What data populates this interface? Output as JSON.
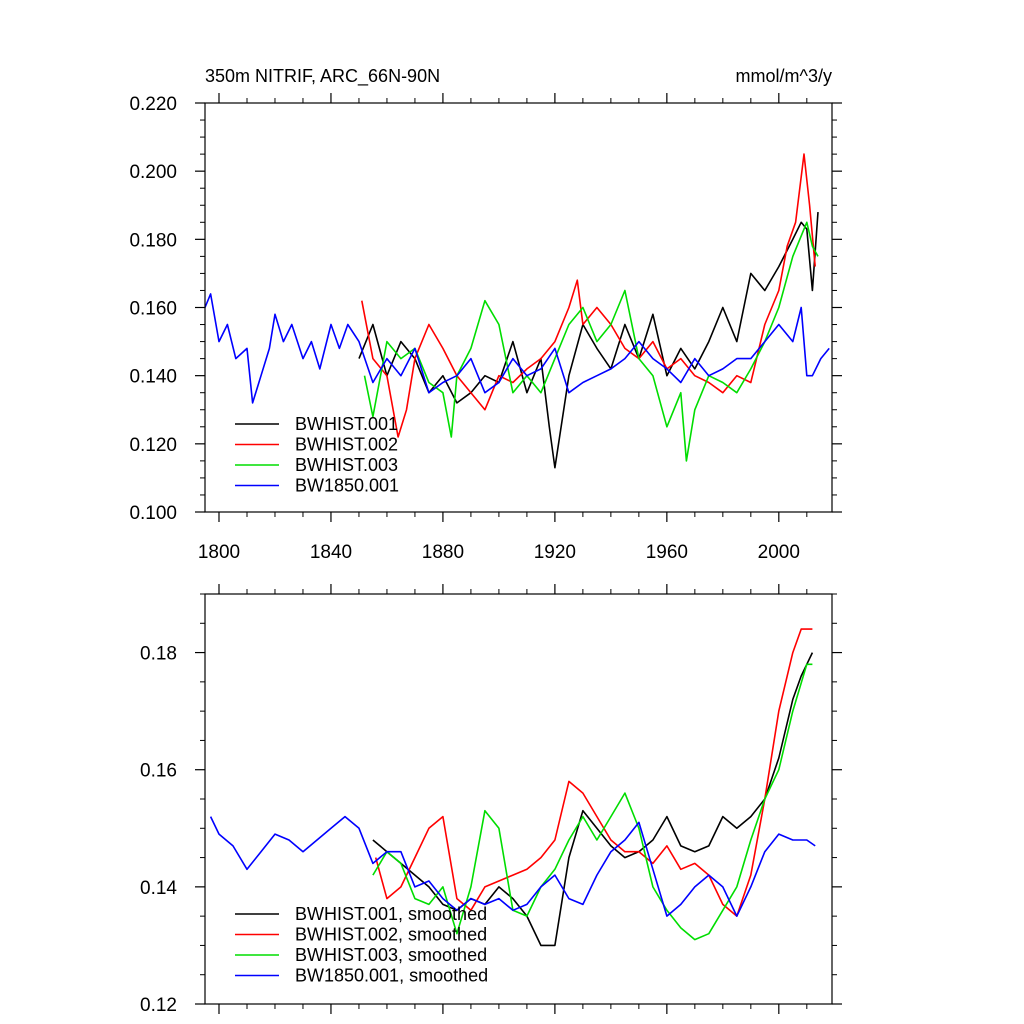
{
  "chart_data": [
    {
      "type": "line",
      "title_left": "350m NITRIF, ARC_66N-90N",
      "title_right": "mmol/m^3/y",
      "xlabel": "",
      "ylabel": "",
      "xlim": [
        1795,
        2019
      ],
      "ylim": [
        0.1,
        0.22
      ],
      "xticks": [
        1800,
        1840,
        1880,
        1920,
        1960,
        2000
      ],
      "xtick_labels": [
        "1800",
        "1840",
        "1880",
        "1920",
        "1960",
        "2000"
      ],
      "yticks": [
        0.1,
        0.12,
        0.14,
        0.16,
        0.18,
        0.2,
        0.22
      ],
      "ytick_labels": [
        "0.100",
        "0.120",
        "0.140",
        "0.160",
        "0.180",
        "0.200",
        "0.220"
      ],
      "legend_position": "bottom-left",
      "series": [
        {
          "name": "BWHIST.001",
          "color": "#000000",
          "x": [
            1850,
            1855,
            1860,
            1865,
            1870,
            1875,
            1880,
            1885,
            1890,
            1895,
            1900,
            1905,
            1910,
            1915,
            1918,
            1920,
            1925,
            1930,
            1935,
            1940,
            1945,
            1950,
            1955,
            1960,
            1965,
            1970,
            1975,
            1980,
            1985,
            1990,
            1995,
            2000,
            2005,
            2008,
            2010,
            2012,
            2014
          ],
          "y": [
            0.145,
            0.155,
            0.14,
            0.15,
            0.145,
            0.135,
            0.14,
            0.132,
            0.135,
            0.14,
            0.138,
            0.15,
            0.135,
            0.145,
            0.125,
            0.113,
            0.14,
            0.155,
            0.148,
            0.142,
            0.155,
            0.145,
            0.158,
            0.14,
            0.148,
            0.142,
            0.15,
            0.16,
            0.15,
            0.17,
            0.165,
            0.172,
            0.18,
            0.185,
            0.183,
            0.165,
            0.188
          ]
        },
        {
          "name": "BWHIST.002",
          "color": "#ff0000",
          "x": [
            1851,
            1855,
            1860,
            1864,
            1867,
            1870,
            1875,
            1880,
            1885,
            1890,
            1895,
            1900,
            1905,
            1910,
            1915,
            1920,
            1925,
            1928,
            1930,
            1935,
            1940,
            1945,
            1950,
            1955,
            1960,
            1965,
            1970,
            1975,
            1980,
            1985,
            1990,
            1995,
            2000,
            2003,
            2006,
            2009,
            2011,
            2013
          ],
          "y": [
            0.162,
            0.145,
            0.14,
            0.122,
            0.13,
            0.145,
            0.155,
            0.148,
            0.14,
            0.135,
            0.13,
            0.14,
            0.138,
            0.142,
            0.145,
            0.15,
            0.16,
            0.168,
            0.155,
            0.16,
            0.155,
            0.148,
            0.145,
            0.15,
            0.142,
            0.145,
            0.14,
            0.138,
            0.135,
            0.14,
            0.138,
            0.155,
            0.165,
            0.178,
            0.185,
            0.205,
            0.19,
            0.172
          ]
        },
        {
          "name": "BWHIST.003",
          "color": "#00dd00",
          "x": [
            1852,
            1855,
            1860,
            1865,
            1870,
            1875,
            1880,
            1883,
            1885,
            1890,
            1895,
            1900,
            1905,
            1910,
            1915,
            1920,
            1925,
            1930,
            1935,
            1940,
            1945,
            1950,
            1955,
            1960,
            1965,
            1967,
            1970,
            1975,
            1980,
            1985,
            1990,
            1995,
            2000,
            2005,
            2010,
            2012,
            2014
          ],
          "y": [
            0.14,
            0.128,
            0.15,
            0.145,
            0.148,
            0.138,
            0.135,
            0.122,
            0.14,
            0.148,
            0.162,
            0.155,
            0.135,
            0.14,
            0.135,
            0.145,
            0.155,
            0.16,
            0.15,
            0.155,
            0.165,
            0.145,
            0.14,
            0.125,
            0.135,
            0.115,
            0.13,
            0.14,
            0.138,
            0.135,
            0.142,
            0.15,
            0.16,
            0.175,
            0.185,
            0.178,
            0.175
          ]
        },
        {
          "name": "BW1850.001",
          "color": "#0000ff",
          "x": [
            1795,
            1797,
            1800,
            1803,
            1806,
            1810,
            1812,
            1815,
            1818,
            1820,
            1823,
            1826,
            1830,
            1833,
            1836,
            1840,
            1843,
            1846,
            1850,
            1855,
            1860,
            1865,
            1870,
            1875,
            1880,
            1885,
            1890,
            1895,
            1900,
            1905,
            1910,
            1915,
            1920,
            1925,
            1930,
            1935,
            1940,
            1945,
            1950,
            1955,
            1960,
            1965,
            1970,
            1975,
            1980,
            1985,
            1990,
            1995,
            2000,
            2005,
            2008,
            2010,
            2012,
            2015,
            2018
          ],
          "y": [
            0.16,
            0.164,
            0.15,
            0.155,
            0.145,
            0.148,
            0.132,
            0.14,
            0.148,
            0.158,
            0.15,
            0.155,
            0.145,
            0.15,
            0.142,
            0.155,
            0.148,
            0.155,
            0.15,
            0.138,
            0.145,
            0.14,
            0.148,
            0.135,
            0.138,
            0.14,
            0.145,
            0.135,
            0.138,
            0.145,
            0.14,
            0.142,
            0.148,
            0.135,
            0.138,
            0.14,
            0.142,
            0.145,
            0.15,
            0.145,
            0.142,
            0.138,
            0.145,
            0.14,
            0.142,
            0.145,
            0.145,
            0.15,
            0.155,
            0.15,
            0.16,
            0.14,
            0.14,
            0.145,
            0.148
          ]
        }
      ]
    },
    {
      "type": "line",
      "xlabel": "",
      "ylabel": "",
      "xlim": [
        1795,
        2019
      ],
      "ylim": [
        0.12,
        0.19
      ],
      "xticks": [
        1800,
        1840,
        1880,
        1920,
        1960,
        2000
      ],
      "xtick_labels": [],
      "yticks": [
        0.12,
        0.14,
        0.16,
        0.18
      ],
      "ytick_labels": [
        "0.12",
        "0.14",
        "0.16",
        "0.18"
      ],
      "legend_position": "bottom-left",
      "series": [
        {
          "name": "BWHIST.001, smoothed",
          "color": "#000000",
          "x": [
            1855,
            1860,
            1865,
            1870,
            1875,
            1880,
            1885,
            1890,
            1895,
            1900,
            1905,
            1910,
            1915,
            1920,
            1925,
            1930,
            1935,
            1940,
            1945,
            1950,
            1955,
            1960,
            1965,
            1970,
            1975,
            1980,
            1985,
            1990,
            1995,
            2000,
            2005,
            2008,
            2010,
            2012
          ],
          "y": [
            0.148,
            0.146,
            0.144,
            0.142,
            0.14,
            0.137,
            0.136,
            0.138,
            0.137,
            0.14,
            0.138,
            0.135,
            0.13,
            0.13,
            0.145,
            0.153,
            0.15,
            0.147,
            0.145,
            0.146,
            0.148,
            0.152,
            0.147,
            0.146,
            0.147,
            0.152,
            0.15,
            0.152,
            0.155,
            0.162,
            0.172,
            0.176,
            0.178,
            0.18
          ]
        },
        {
          "name": "BWHIST.002, smoothed",
          "color": "#ff0000",
          "x": [
            1856,
            1860,
            1865,
            1870,
            1875,
            1880,
            1885,
            1890,
            1895,
            1900,
            1905,
            1910,
            1915,
            1920,
            1925,
            1930,
            1935,
            1940,
            1945,
            1950,
            1955,
            1960,
            1965,
            1970,
            1975,
            1980,
            1985,
            1990,
            1995,
            2000,
            2005,
            2008,
            2010,
            2012
          ],
          "y": [
            0.145,
            0.138,
            0.14,
            0.145,
            0.15,
            0.152,
            0.138,
            0.136,
            0.14,
            0.141,
            0.142,
            0.143,
            0.145,
            0.148,
            0.158,
            0.156,
            0.152,
            0.148,
            0.146,
            0.146,
            0.144,
            0.147,
            0.143,
            0.144,
            0.142,
            0.137,
            0.135,
            0.142,
            0.155,
            0.17,
            0.18,
            0.184,
            0.184,
            0.184
          ]
        },
        {
          "name": "BWHIST.003, smoothed",
          "color": "#00dd00",
          "x": [
            1855,
            1860,
            1865,
            1870,
            1875,
            1880,
            1885,
            1890,
            1895,
            1900,
            1905,
            1910,
            1915,
            1920,
            1925,
            1930,
            1935,
            1940,
            1945,
            1950,
            1955,
            1960,
            1965,
            1970,
            1975,
            1980,
            1985,
            1990,
            1995,
            2000,
            2005,
            2010,
            2012
          ],
          "y": [
            0.142,
            0.146,
            0.144,
            0.138,
            0.137,
            0.14,
            0.132,
            0.14,
            0.153,
            0.15,
            0.136,
            0.135,
            0.14,
            0.143,
            0.148,
            0.152,
            0.148,
            0.152,
            0.156,
            0.15,
            0.14,
            0.136,
            0.133,
            0.131,
            0.132,
            0.136,
            0.14,
            0.148,
            0.155,
            0.16,
            0.17,
            0.178,
            0.178
          ]
        },
        {
          "name": "BW1850.001, smoothed",
          "color": "#0000ff",
          "x": [
            1797,
            1800,
            1805,
            1810,
            1815,
            1820,
            1825,
            1830,
            1835,
            1840,
            1845,
            1850,
            1855,
            1860,
            1865,
            1870,
            1875,
            1880,
            1885,
            1890,
            1895,
            1900,
            1905,
            1910,
            1915,
            1920,
            1925,
            1930,
            1935,
            1940,
            1945,
            1950,
            1955,
            1960,
            1965,
            1970,
            1975,
            1980,
            1985,
            1990,
            1995,
            2000,
            2005,
            2010,
            2013
          ],
          "y": [
            0.152,
            0.149,
            0.147,
            0.143,
            0.146,
            0.149,
            0.148,
            0.146,
            0.148,
            0.15,
            0.152,
            0.15,
            0.144,
            0.146,
            0.146,
            0.14,
            0.141,
            0.138,
            0.136,
            0.138,
            0.137,
            0.138,
            0.136,
            0.137,
            0.14,
            0.142,
            0.138,
            0.137,
            0.142,
            0.146,
            0.148,
            0.151,
            0.143,
            0.135,
            0.137,
            0.14,
            0.142,
            0.14,
            0.135,
            0.14,
            0.146,
            0.149,
            0.148,
            0.148,
            0.147
          ]
        }
      ]
    }
  ]
}
